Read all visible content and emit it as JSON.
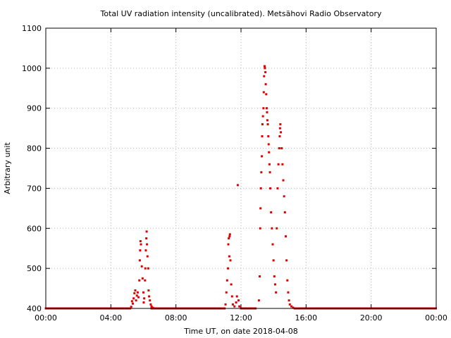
{
  "chart_data": {
    "type": "scatter",
    "title": "Total UV radiation intensity (uncalibrated). Metsähovi Radio Observatory",
    "xlabel": "Time UT, on date 2018-04-08",
    "ylabel": "Arbitrary unit",
    "xlim": [
      0,
      24
    ],
    "ylim": [
      400,
      1100
    ],
    "x_ticks": [
      0,
      4,
      8,
      12,
      16,
      20,
      24
    ],
    "x_tick_labels": [
      "00:00",
      "04:00",
      "08:00",
      "12:00",
      "16:00",
      "20:00",
      "00:00"
    ],
    "y_ticks": [
      400,
      500,
      600,
      700,
      800,
      900,
      1000,
      1100
    ],
    "y_tick_labels": [
      "400",
      "500",
      "600",
      "700",
      "800",
      "900",
      "1000",
      "1100"
    ],
    "grid": true,
    "marker_color": "#e00000",
    "baseline": {
      "value": 400,
      "segments": [
        [
          0,
          5.2
        ],
        [
          6.5,
          11.0
        ],
        [
          12.0,
          12.9
        ],
        [
          15.3,
          24
        ]
      ],
      "step_hours": 0.033
    },
    "points": [
      [
        5.25,
        404
      ],
      [
        5.3,
        418
      ],
      [
        5.35,
        412
      ],
      [
        5.4,
        425
      ],
      [
        5.45,
        438
      ],
      [
        5.5,
        445
      ],
      [
        5.55,
        420
      ],
      [
        5.6,
        432
      ],
      [
        5.65,
        440
      ],
      [
        5.7,
        428
      ],
      [
        5.75,
        470
      ],
      [
        5.78,
        520
      ],
      [
        5.8,
        545
      ],
      [
        5.82,
        568
      ],
      [
        5.85,
        560
      ],
      [
        5.9,
        505
      ],
      [
        5.95,
        475
      ],
      [
        6.0,
        440
      ],
      [
        6.02,
        415
      ],
      [
        6.05,
        425
      ],
      [
        6.1,
        470
      ],
      [
        6.12,
        500
      ],
      [
        6.15,
        545
      ],
      [
        6.18,
        575
      ],
      [
        6.2,
        592
      ],
      [
        6.22,
        560
      ],
      [
        6.25,
        530
      ],
      [
        6.3,
        500
      ],
      [
        6.32,
        445
      ],
      [
        6.35,
        430
      ],
      [
        6.4,
        420
      ],
      [
        6.45,
        410
      ],
      [
        6.5,
        405
      ],
      [
        6.55,
        402
      ],
      [
        6.6,
        401
      ],
      [
        11.05,
        410
      ],
      [
        11.1,
        440
      ],
      [
        11.15,
        470
      ],
      [
        11.2,
        500
      ],
      [
        11.22,
        560
      ],
      [
        11.25,
        575
      ],
      [
        11.28,
        530
      ],
      [
        11.3,
        580
      ],
      [
        11.32,
        585
      ],
      [
        11.35,
        520
      ],
      [
        11.4,
        460
      ],
      [
        11.45,
        430
      ],
      [
        11.5,
        410
      ],
      [
        11.6,
        405
      ],
      [
        11.7,
        415
      ],
      [
        11.75,
        430
      ],
      [
        11.8,
        708
      ],
      [
        11.85,
        420
      ],
      [
        11.9,
        405
      ],
      [
        13.1,
        420
      ],
      [
        13.15,
        480
      ],
      [
        13.18,
        600
      ],
      [
        13.2,
        650
      ],
      [
        13.22,
        700
      ],
      [
        13.25,
        740
      ],
      [
        13.28,
        780
      ],
      [
        13.3,
        830
      ],
      [
        13.32,
        860
      ],
      [
        13.35,
        880
      ],
      [
        13.38,
        900
      ],
      [
        13.4,
        940
      ],
      [
        13.42,
        980
      ],
      [
        13.45,
        1005
      ],
      [
        13.47,
        1000
      ],
      [
        13.5,
        990
      ],
      [
        13.52,
        960
      ],
      [
        13.55,
        935
      ],
      [
        13.58,
        900
      ],
      [
        13.6,
        890
      ],
      [
        13.62,
        870
      ],
      [
        13.65,
        860
      ],
      [
        13.68,
        830
      ],
      [
        13.7,
        810
      ],
      [
        13.72,
        790
      ],
      [
        13.75,
        760
      ],
      [
        13.78,
        740
      ],
      [
        13.8,
        700
      ],
      [
        13.85,
        640
      ],
      [
        13.9,
        600
      ],
      [
        13.95,
        560
      ],
      [
        14.0,
        520
      ],
      [
        14.05,
        480
      ],
      [
        14.1,
        460
      ],
      [
        14.15,
        440
      ],
      [
        14.2,
        600
      ],
      [
        14.25,
        700
      ],
      [
        14.3,
        760
      ],
      [
        14.35,
        800
      ],
      [
        14.38,
        830
      ],
      [
        14.4,
        850
      ],
      [
        14.42,
        860
      ],
      [
        14.45,
        840
      ],
      [
        14.5,
        800
      ],
      [
        14.55,
        760
      ],
      [
        14.6,
        720
      ],
      [
        14.65,
        680
      ],
      [
        14.7,
        640
      ],
      [
        14.75,
        580
      ],
      [
        14.8,
        520
      ],
      [
        14.85,
        470
      ],
      [
        14.9,
        440
      ],
      [
        14.95,
        420
      ],
      [
        15.0,
        410
      ],
      [
        15.1,
        405
      ],
      [
        15.2,
        402
      ]
    ]
  }
}
